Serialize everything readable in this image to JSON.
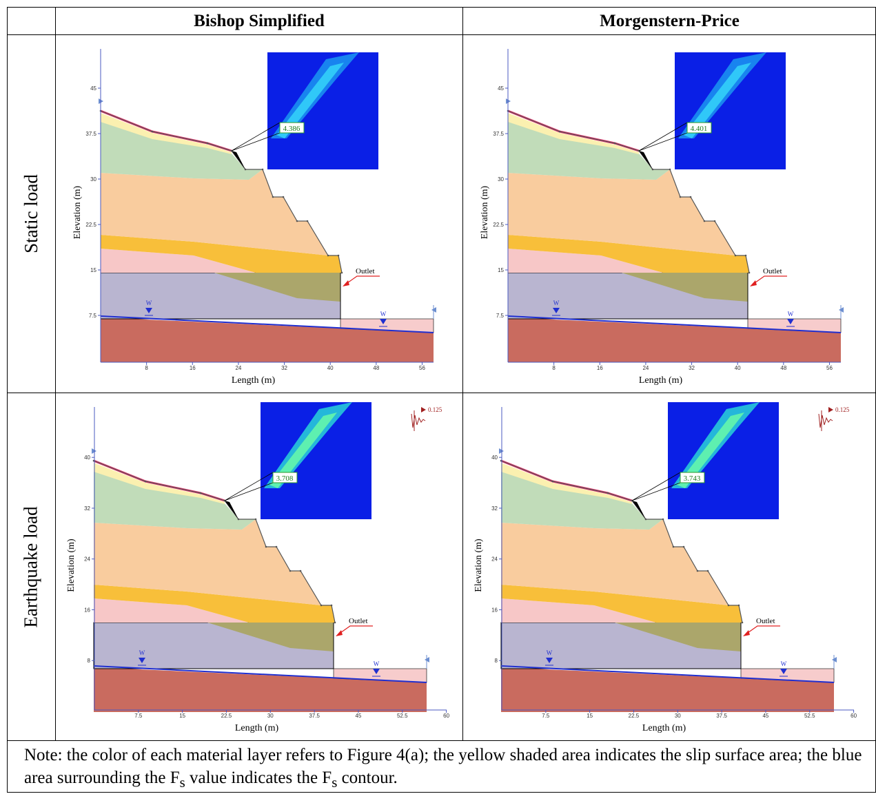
{
  "header": {
    "columns": [
      "Bishop Simplified",
      "Morgenstern-Price"
    ]
  },
  "rows": [
    {
      "label": "Static load",
      "x_label": "Length (m)",
      "y_label": "Elevation (m)",
      "xticks": [
        8,
        16,
        24,
        32,
        40,
        48,
        56
      ],
      "yticks": [
        7.5,
        15,
        22.5,
        30,
        37.5,
        45
      ],
      "panels": [
        {
          "fs": "4.386",
          "outlet": "Outlet",
          "water": [
            "W",
            "W"
          ]
        },
        {
          "fs": "4.401",
          "outlet": "Outlet",
          "water": [
            "W",
            "W"
          ]
        }
      ]
    },
    {
      "label": "Earthquake load",
      "x_label": "Length (m)",
      "y_label": "Elevation (m)",
      "xticks": [
        7.5,
        15,
        22.5,
        30,
        37.5,
        45,
        52.5,
        60
      ],
      "yticks": [
        8,
        16,
        24,
        32,
        40
      ],
      "panels": [
        {
          "fs": "3.708",
          "outlet": "Outlet",
          "water": [
            "W",
            "W"
          ],
          "seismic": "0.125"
        },
        {
          "fs": "3.743",
          "outlet": "Outlet",
          "water": [
            "W",
            "W"
          ],
          "seismic": "0.125"
        }
      ]
    }
  ],
  "note": [
    "Note: the color of each material layer refers to Figure 4(a); the yellow shaded area indicates the slip surface area; the blue area surrounding the F",
    "s",
    " value indicates the F",
    "s",
    " contour."
  ]
}
